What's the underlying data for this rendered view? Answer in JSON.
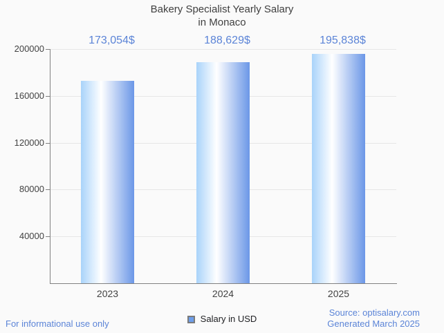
{
  "title": {
    "line1": "Bakery Specialist Yearly Salary",
    "line2": "in Monaco"
  },
  "chart_data": {
    "type": "bar",
    "title": "Bakery Specialist Yearly Salary in Monaco",
    "categories": [
      "2023",
      "2024",
      "2025"
    ],
    "values": [
      173054,
      188629,
      195838
    ],
    "value_labels": [
      "173,054$",
      "188,629$",
      "195,838$"
    ],
    "series": [
      {
        "name": "Salary in USD",
        "values": [
          173054,
          188629,
          195838
        ]
      }
    ],
    "xlabel": "",
    "ylabel": "",
    "ylim": [
      0,
      200000
    ],
    "yticks": [
      40000,
      80000,
      120000,
      160000,
      200000
    ],
    "grid": true,
    "legend_position": "bottom",
    "bar_gradient": [
      "#a9d3fa",
      "#ffffff",
      "#6b97e7"
    ]
  },
  "legend": {
    "label": "Salary in USD",
    "swatch_color": "#6d9eeb"
  },
  "footer": {
    "disclaimer": "For informational use only",
    "source": "Source: optisalary.com",
    "generated": "Generated March 2025"
  },
  "colors": {
    "accent_blue": "#5b84d7",
    "title_gray": "#3f3f3f",
    "tick_text_gray": "#424242",
    "axis_gray": "#808080",
    "gridline_gray": "#e6e6e6",
    "background": "#fafafa",
    "legend_border_gray": "#7a7a7a",
    "legend_text": "#202124"
  }
}
